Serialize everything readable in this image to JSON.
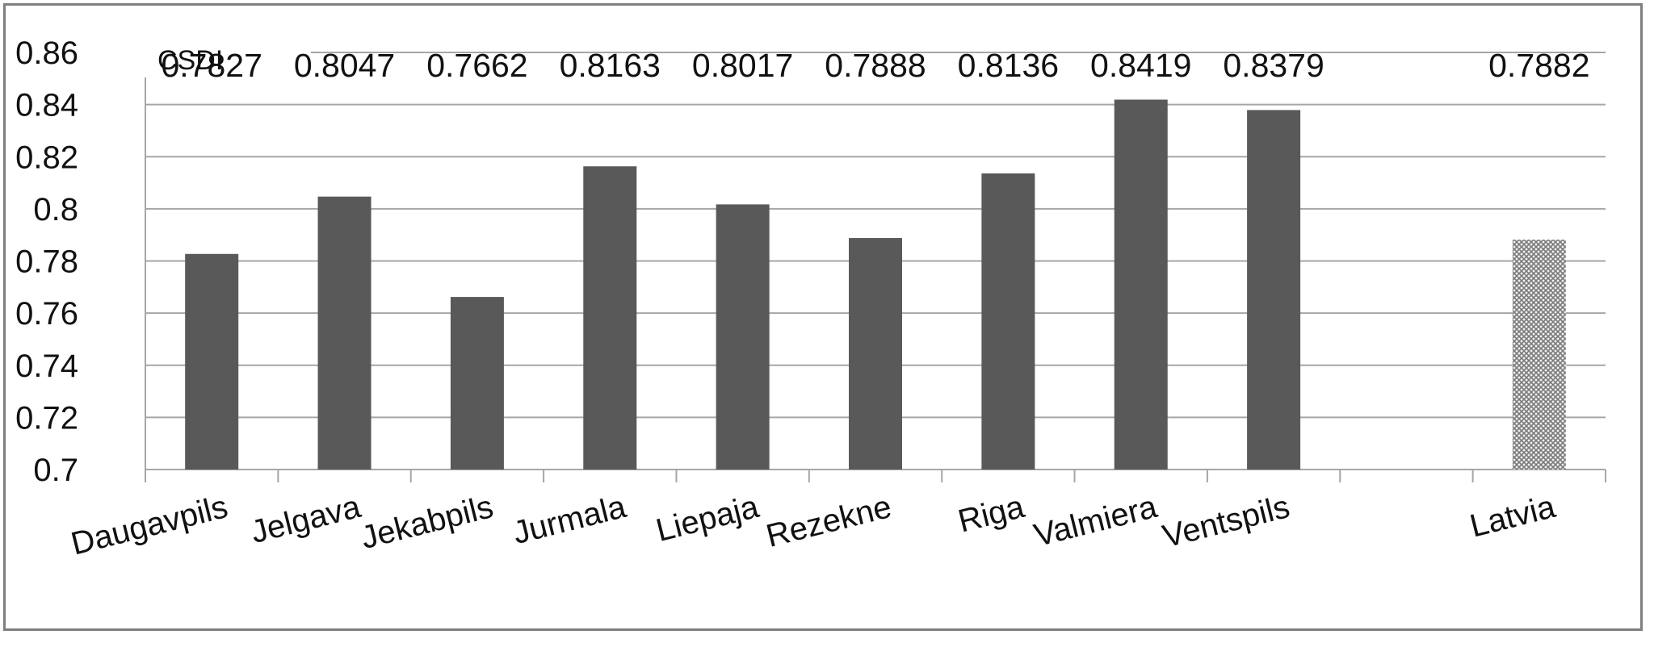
{
  "chart_data": {
    "type": "bar",
    "title": "",
    "xlabel": "",
    "ylabel": "CSDI",
    "ylim": [
      0.7,
      0.86
    ],
    "y_ticks": [
      "0.7",
      "0.72",
      "0.74",
      "0.76",
      "0.78",
      "0.8",
      "0.82",
      "0.84",
      "0.86"
    ],
    "grid": true,
    "categories": [
      "Daugavpils",
      "Jelgava",
      "Jekabpils",
      "Jurmala",
      "Liepaja",
      "Rezekne",
      "Riga",
      "Valmiera",
      "Ventspils",
      "",
      "Latvia"
    ],
    "values": [
      0.7827,
      0.8047,
      0.7662,
      0.8163,
      0.8017,
      0.7888,
      0.8136,
      0.8419,
      0.8379,
      null,
      0.7882
    ],
    "data_labels": [
      "0.7827",
      "0.8047",
      "0.7662",
      "0.8163",
      "0.8017",
      "0.7888",
      "0.8136",
      "0.8419",
      "0.8379",
      "",
      "0.7882"
    ],
    "bar_styles": [
      "solid",
      "solid",
      "solid",
      "solid",
      "solid",
      "solid",
      "solid",
      "solid",
      "solid",
      "",
      "hatched"
    ],
    "colors": {
      "bar": "#595959",
      "hatched_bar": "#8c8c8c",
      "grid": "#a6a6a6",
      "axis": "#a6a6a6"
    }
  }
}
